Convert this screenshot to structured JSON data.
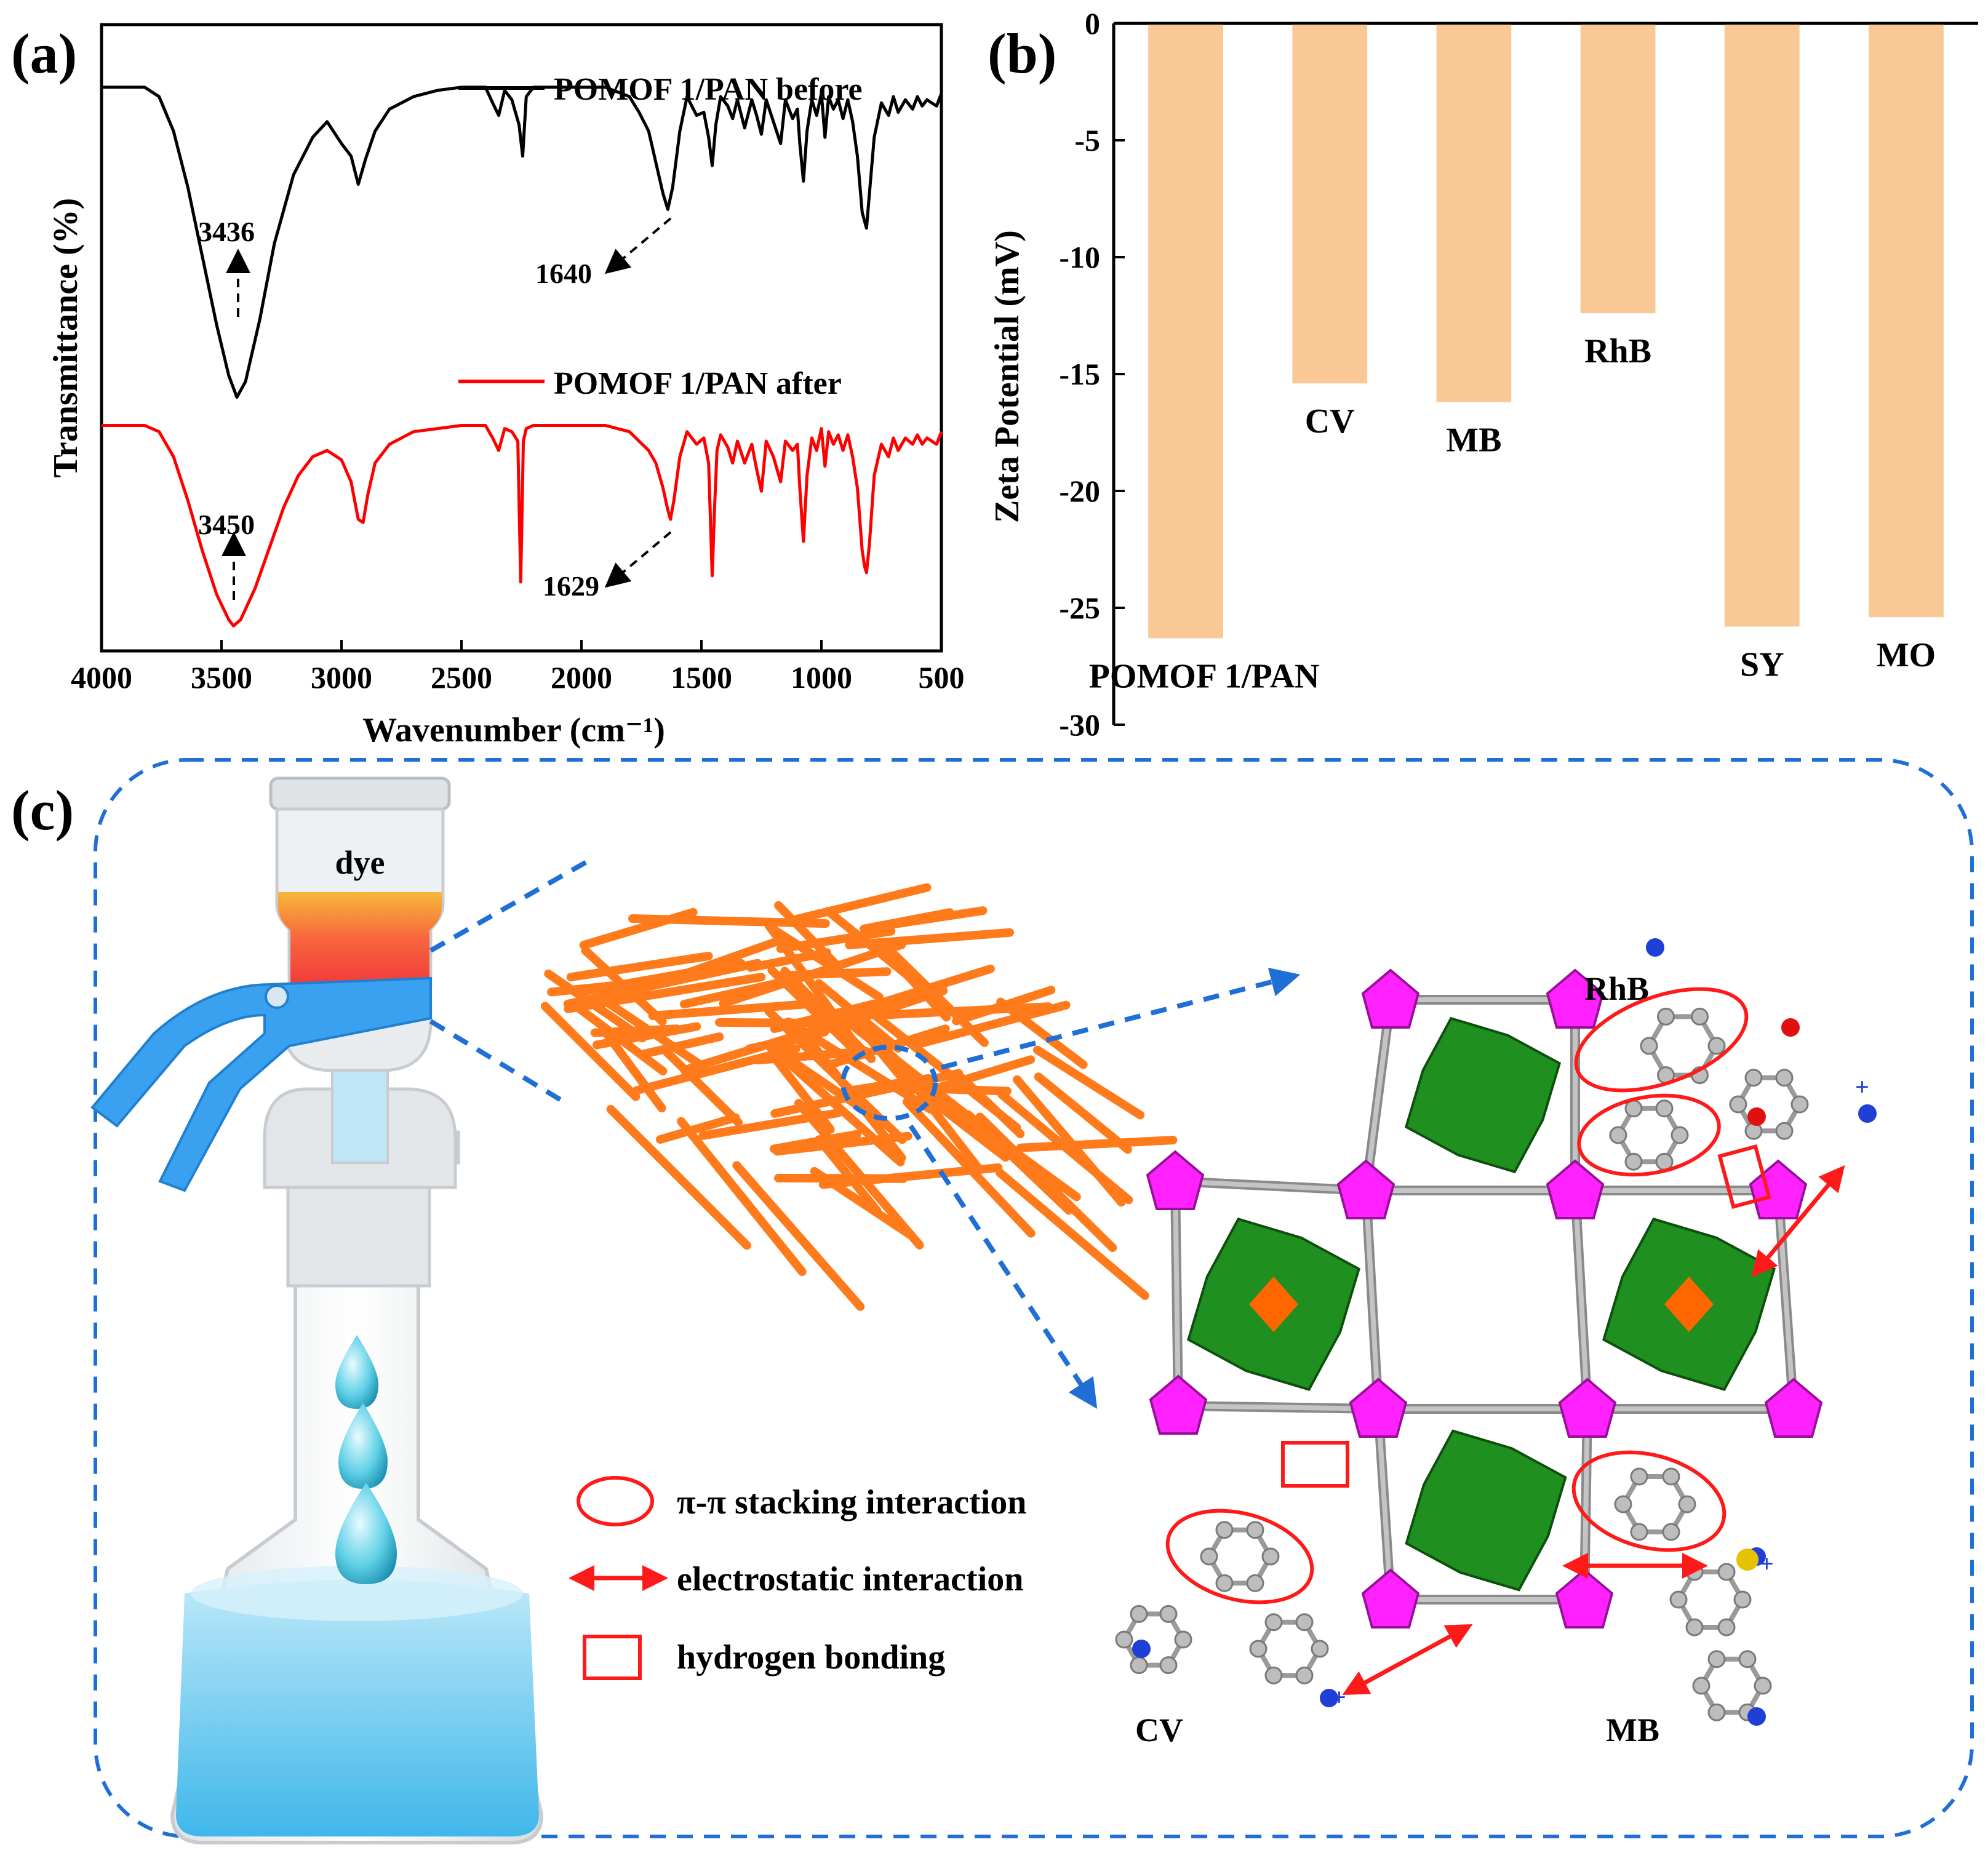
{
  "panels": {
    "a": {
      "letter": "(a)"
    },
    "b": {
      "letter": "(b)"
    },
    "c": {
      "letter": "(c)"
    }
  },
  "chart_data": [
    {
      "type": "line",
      "panel": "a",
      "title": "",
      "xlabel": "Wavenumber (cm⁻¹)",
      "ylabel": "Transmittance (%)",
      "xlim": [
        4000,
        500
      ],
      "x_ticks": [
        "4000",
        "3500",
        "3000",
        "2500",
        "2000",
        "1500",
        "1000",
        "500"
      ],
      "x_tick_values": [
        4000,
        3500,
        3000,
        2500,
        2000,
        1500,
        1000,
        500
      ],
      "series": [
        {
          "name": "POMOF 1/PAN before",
          "color": "#000000",
          "x": [
            4000,
            3820,
            3760,
            3700,
            3640,
            3580,
            3520,
            3470,
            3436,
            3400,
            3340,
            3280,
            3200,
            3120,
            3060,
            3000,
            2960,
            2930,
            2900,
            2860,
            2800,
            2700,
            2600,
            2500,
            2400,
            2370,
            2345,
            2320,
            2290,
            2260,
            2245,
            2230,
            2200,
            2100,
            2000,
            1900,
            1800,
            1760,
            1720,
            1690,
            1660,
            1640,
            1620,
            1590,
            1560,
            1520,
            1490,
            1470,
            1455,
            1440,
            1420,
            1390,
            1370,
            1350,
            1320,
            1290,
            1270,
            1250,
            1230,
            1200,
            1170,
            1150,
            1120,
            1100,
            1090,
            1075,
            1060,
            1040,
            1020,
            1000,
            985,
            970,
            950,
            930,
            910,
            890,
            870,
            850,
            830,
            812,
            800,
            780,
            750,
            720,
            700,
            680,
            650,
            620,
            600,
            580,
            560,
            540,
            520,
            500
          ],
          "y": [
            9.0,
            9.0,
            8.85,
            8.3,
            7.4,
            6.3,
            5.2,
            4.4,
            4.05,
            4.3,
            5.3,
            6.5,
            7.6,
            8.2,
            8.45,
            8.1,
            7.9,
            7.45,
            7.85,
            8.3,
            8.65,
            8.85,
            8.95,
            9.0,
            9.0,
            8.75,
            8.55,
            8.95,
            8.8,
            8.4,
            7.9,
            8.85,
            9.0,
            9.0,
            9.0,
            9.0,
            8.85,
            8.6,
            8.3,
            7.8,
            7.3,
            7.05,
            7.4,
            8.3,
            8.85,
            8.55,
            8.6,
            8.2,
            7.75,
            8.4,
            8.85,
            8.7,
            8.5,
            8.8,
            8.35,
            8.8,
            8.55,
            8.25,
            8.8,
            8.45,
            8.1,
            8.8,
            8.5,
            8.65,
            8.1,
            7.5,
            8.3,
            8.8,
            8.55,
            8.9,
            8.2,
            8.85,
            8.65,
            8.8,
            8.5,
            8.8,
            8.45,
            7.9,
            7.0,
            6.75,
            7.3,
            8.2,
            8.75,
            8.55,
            8.85,
            8.6,
            8.8,
            8.65,
            8.85,
            8.7,
            8.8,
            8.75,
            8.7,
            8.9
          ]
        },
        {
          "name": "POMOF 1/PAN after",
          "color": "#ff0000",
          "x": [
            4000,
            3820,
            3760,
            3700,
            3640,
            3580,
            3520,
            3470,
            3450,
            3420,
            3360,
            3300,
            3240,
            3180,
            3120,
            3060,
            3000,
            2960,
            2930,
            2910,
            2890,
            2860,
            2800,
            2700,
            2600,
            2500,
            2400,
            2370,
            2345,
            2320,
            2290,
            2265,
            2253,
            2242,
            2230,
            2200,
            2100,
            2000,
            1900,
            1800,
            1760,
            1720,
            1690,
            1660,
            1640,
            1629,
            1615,
            1590,
            1560,
            1520,
            1490,
            1470,
            1455,
            1445,
            1435,
            1420,
            1390,
            1370,
            1350,
            1320,
            1290,
            1270,
            1250,
            1230,
            1200,
            1170,
            1150,
            1120,
            1100,
            1090,
            1075,
            1060,
            1040,
            1020,
            1000,
            985,
            970,
            950,
            930,
            910,
            890,
            870,
            850,
            830,
            820,
            812,
            800,
            780,
            750,
            720,
            700,
            680,
            650,
            620,
            600,
            580,
            560,
            540,
            520,
            500
          ],
          "y": [
            3.6,
            3.6,
            3.5,
            3.1,
            2.4,
            1.6,
            0.9,
            0.5,
            0.4,
            0.5,
            1.0,
            1.65,
            2.3,
            2.8,
            3.1,
            3.2,
            3.05,
            2.7,
            2.1,
            2.05,
            2.5,
            3.0,
            3.3,
            3.5,
            3.55,
            3.6,
            3.6,
            3.4,
            3.2,
            3.55,
            3.5,
            3.35,
            1.1,
            3.35,
            3.55,
            3.6,
            3.6,
            3.6,
            3.6,
            3.5,
            3.35,
            3.2,
            3.0,
            2.6,
            2.25,
            2.1,
            2.4,
            3.1,
            3.5,
            3.3,
            3.4,
            3.0,
            1.2,
            2.3,
            3.2,
            3.45,
            3.25,
            3.0,
            3.35,
            3.0,
            3.3,
            2.9,
            2.55,
            3.35,
            3.1,
            2.7,
            3.35,
            3.2,
            3.3,
            2.6,
            1.75,
            2.8,
            3.4,
            3.2,
            3.55,
            2.95,
            3.5,
            3.3,
            3.45,
            3.2,
            3.45,
            3.1,
            2.6,
            1.6,
            1.35,
            1.25,
            1.7,
            2.8,
            3.3,
            3.1,
            3.4,
            3.2,
            3.4,
            3.3,
            3.45,
            3.3,
            3.4,
            3.35,
            3.3,
            3.5
          ]
        }
      ],
      "annotations": [
        {
          "text": "3436",
          "series": 0,
          "x": 3436
        },
        {
          "text": "1640",
          "series": 0,
          "x": 1640
        },
        {
          "text": "3450",
          "series": 1,
          "x": 3450
        },
        {
          "text": "1629",
          "series": 1,
          "x": 1629
        }
      ],
      "legend": "top-right, one entry above each curve"
    },
    {
      "type": "bar",
      "panel": "b",
      "title": "",
      "xlabel": "",
      "ylabel": "Zeta Potential (mV)",
      "ylim": [
        -30,
        0
      ],
      "y_ticks": [
        "0",
        "-5",
        "-10",
        "-15",
        "-20",
        "-25",
        "-30"
      ],
      "y_tick_values": [
        0,
        -5,
        -10,
        -15,
        -20,
        -25,
        -30
      ],
      "categories": [
        "POMOF 1/PAN",
        "CV",
        "MB",
        "RhB",
        "SY",
        "MO"
      ],
      "values": [
        -26.3,
        -15.4,
        -16.2,
        -12.4,
        -25.8,
        -25.4
      ],
      "bar_color": "#fac896",
      "axis_position": "x-axis along top at y = 0"
    }
  ],
  "diagram": {
    "funnel_label": "dye",
    "legend": [
      {
        "shape": "ellipse",
        "label": "π-π stacking interaction"
      },
      {
        "shape": "double-arrow",
        "label": "electrostatic interaction"
      },
      {
        "shape": "square",
        "label": "hydrogen bonding"
      }
    ],
    "molecule_labels": {
      "rhb": "RhB",
      "cv": "CV",
      "mb": "MB"
    },
    "charge_sign": "+",
    "colors": {
      "dash_blue": "#1f6fd6",
      "clip_blue": "#3aa0f0",
      "fiber_orange": "#ff7a1a",
      "poly_green": "#1f8f1f",
      "poly_magenta": "#ff22ff",
      "center_orange": "#ff6600",
      "highlight_red": "#ff1a1a"
    }
  }
}
